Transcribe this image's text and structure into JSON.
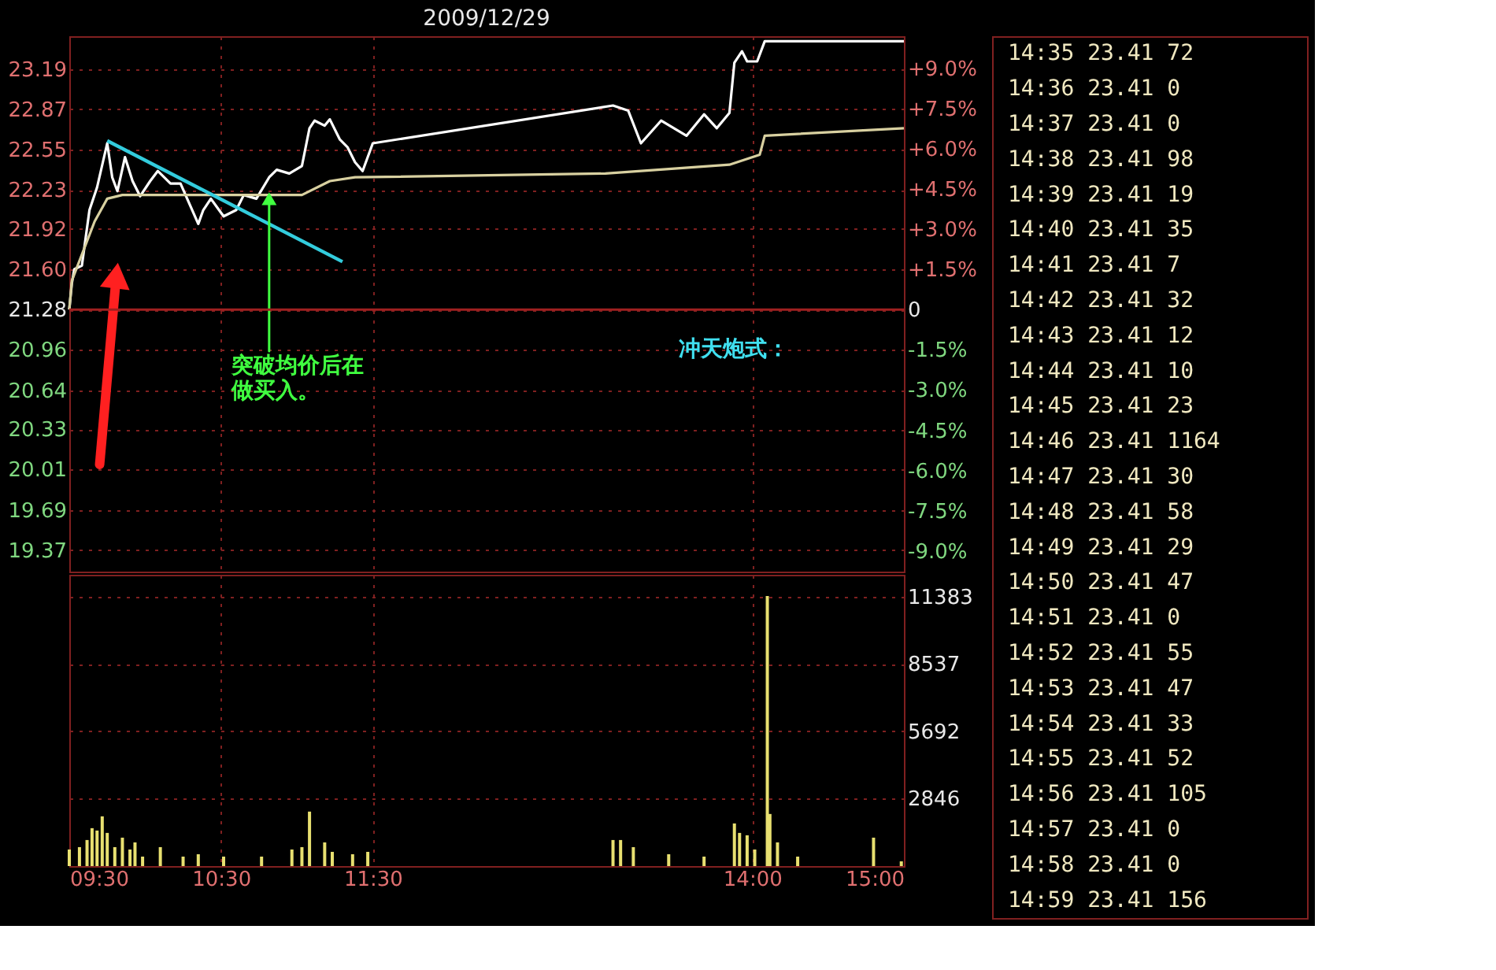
{
  "chart_data": [
    {
      "type": "line",
      "title": "2009/12/29",
      "series": [
        {
          "color": "#ffffff",
          "x": [
            9.5,
            9.517,
            9.533,
            9.583,
            9.633,
            9.683,
            9.75,
            9.783,
            9.817,
            9.867,
            9.917,
            9.967,
            10.033,
            10.083,
            10.167,
            10.233,
            10.35,
            10.383,
            10.433,
            10.517,
            10.6,
            10.65,
            10.733,
            10.817,
            10.867,
            10.95,
            11.033,
            11.083,
            11.117,
            11.183,
            11.217,
            11.283,
            11.333,
            11.383,
            11.433,
            11.5,
            13.083,
            13.183,
            13.267,
            13.4,
            13.567,
            13.683,
            13.767,
            13.85,
            13.883,
            13.933,
            13.967,
            14.033,
            14.083,
            15
          ],
          "values": [
            21.28,
            21.49,
            21.6,
            21.63,
            22.07,
            22.25,
            22.6,
            22.33,
            22.22,
            22.49,
            22.3,
            22.18,
            22.3,
            22.38,
            22.28,
            22.28,
            21.96,
            22.07,
            22.16,
            22.02,
            22.07,
            22.19,
            22.16,
            22.33,
            22.39,
            22.36,
            22.42,
            22.72,
            22.78,
            22.74,
            22.79,
            22.63,
            22.57,
            22.45,
            22.38,
            22.6,
            22.9,
            22.86,
            22.6,
            22.78,
            22.66,
            22.83,
            22.72,
            22.84,
            23.24,
            23.33,
            23.25,
            23.25,
            23.41,
            23.41
          ]
        },
        {
          "color": "#d8d0a0",
          "x": [
            9.5,
            9.517,
            9.667,
            9.75,
            9.85,
            10.617,
            11.033,
            11.217,
            11.383,
            13.033,
            13.85,
            14.05,
            14.083,
            15
          ],
          "values": [
            21.28,
            21.51,
            21.98,
            22.16,
            22.19,
            22.19,
            22.19,
            22.3,
            22.33,
            22.36,
            22.43,
            22.51,
            22.66,
            22.72
          ]
        },
        {
          "type": "line",
          "color": "#33ccdd",
          "x": [
            9.75,
            11.3
          ],
          "values": [
            22.62,
            21.66
          ]
        }
      ],
      "xlim": [
        9.5,
        15
      ],
      "xticks": [
        9.5,
        10.5,
        11.5,
        14,
        15
      ],
      "ylim": [
        19.2,
        23.45
      ],
      "yticks": [
        19.37,
        19.69,
        20.01,
        20.33,
        20.64,
        20.96,
        21.28,
        {
          "value": 21.6,
          "label": "21.60"
        },
        21.92,
        22.23,
        22.55,
        22.87,
        23.19
      ],
      "y2lim": [
        -9.77,
        10.2
      ],
      "y2ticks": [
        {
          "value": -9,
          "label": "-9.0%"
        },
        {
          "value": -7.5,
          "label": "-7.5%"
        },
        {
          "value": -6,
          "label": "-6.0%"
        },
        {
          "value": -4.5,
          "label": "-4.5%"
        },
        {
          "value": -3,
          "label": "-3.0%"
        },
        {
          "value": -1.5,
          "label": "-1.5%"
        },
        0,
        {
          "value": 1.5,
          "label": "+1.5%"
        },
        {
          "value": 3,
          "label": "+3.0%"
        },
        {
          "value": 4.5,
          "label": "+4.5%"
        },
        {
          "value": 6,
          "label": "+6.0%"
        },
        {
          "value": 7.5,
          "label": "+7.5%"
        },
        {
          "value": 9,
          "label": "+9.0%"
        }
      ],
      "ref_lines": [
        {
          "axis": "y2",
          "value": 0,
          "color": "#a02020"
        }
      ],
      "annotations": [
        {
          "text": "突破均价后在做买入。",
          "x": 10.817,
          "y": 22.2
        },
        "冲天炮式："
      ],
      "grid": true,
      "tick_labels": "y"
    },
    {
      "type": "bar",
      "color": "#e8e070",
      "x": [
        9.5,
        9.567,
        9.617,
        9.65,
        9.683,
        9.717,
        9.75,
        9.8,
        9.85,
        9.9,
        9.933,
        9.983,
        10.1,
        10.25,
        10.35,
        10.517,
        10.767,
        10.967,
        11.033,
        11.083,
        11.183,
        11.233,
        11.367,
        11.467,
        13.083,
        13.133,
        13.217,
        13.45,
        13.683,
        13.883,
        13.917,
        13.967,
        14.017,
        14.1,
        14.117,
        14.167,
        14.3,
        14.8,
        14.983
      ],
      "values": [
        700,
        800,
        1100,
        1600,
        1500,
        2100,
        1400,
        800,
        1200,
        700,
        1000,
        400,
        800,
        400,
        500,
        400,
        400,
        700,
        800,
        2300,
        1000,
        600,
        500,
        600,
        1100,
        1100,
        800,
        500,
        400,
        1800,
        1400,
        1300,
        700,
        11400,
        2200,
        1000,
        400,
        1200,
        200
      ],
      "xlim": [
        9.5,
        15
      ],
      "xticks": [
        {
          "value": 9.5,
          "label": "09:30"
        },
        {
          "value": 10.5,
          "label": "10:30"
        },
        {
          "value": 11.5,
          "label": "11:30"
        },
        {
          "value": 14,
          "label": "14:00"
        },
        {
          "value": 15,
          "label": "15:00"
        }
      ],
      "ylim": [
        0,
        12300
      ],
      "yticks": [
        2846,
        5692,
        8537,
        11383
      ],
      "grid": true
    },
    {
      "type": "other",
      "annotations": [
        "14:35 23.41 72",
        "14:36 23.41 0",
        "14:37 23.41 0",
        "14:38 23.41 98",
        "14:39 23.41 19",
        "14:40 23.41 35",
        "14:41 23.41 7",
        "14:42 23.41 32",
        "14:43 23.41 12",
        "14:44 23.41 10",
        "14:45 23.41 23",
        "14:46 23.41 1164",
        "14:47 23.41 30",
        "14:48 23.41 58",
        "14:49 23.41 29",
        "14:50 23.41 47",
        "14:51 23.41 0",
        "14:52 23.41 55",
        "14:53 23.41 47",
        "14:54 23.41 33",
        "14:55 23.41 52",
        "14:56 23.41 105",
        "14:57 23.41 0",
        "14:58 23.41 0",
        "14:59 23.41 156"
      ]
    }
  ]
}
